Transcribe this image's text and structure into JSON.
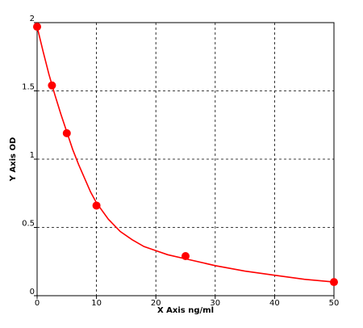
{
  "chart_data": {
    "type": "scatter",
    "xlabel": "X Axis ng/ml",
    "ylabel": "Y Axis OD",
    "xlim": [
      0,
      50
    ],
    "xticks": [
      0,
      10,
      20,
      30,
      40,
      50
    ],
    "ylim": [
      0,
      2
    ],
    "yticks": [
      0,
      0.5,
      1,
      1.5,
      2
    ],
    "grid": true,
    "series": [
      {
        "mode": "markers",
        "color": "#ff0000",
        "x": [
          0,
          2.5,
          5,
          10,
          25,
          50
        ],
        "values": [
          1.97,
          1.54,
          1.19,
          0.66,
          0.29,
          0.1
        ]
      },
      {
        "mode": "line",
        "color": "#ff0000",
        "x": [
          0,
          1,
          2,
          3,
          4,
          5,
          6,
          7,
          8,
          9,
          10,
          12,
          14,
          16,
          18,
          20,
          22,
          25,
          30,
          35,
          40,
          45,
          50
        ],
        "values": [
          1.97,
          1.79,
          1.62,
          1.47,
          1.33,
          1.2,
          1.07,
          0.96,
          0.86,
          0.76,
          0.68,
          0.56,
          0.47,
          0.41,
          0.36,
          0.33,
          0.3,
          0.27,
          0.22,
          0.18,
          0.15,
          0.12,
          0.1
        ]
      }
    ]
  }
}
